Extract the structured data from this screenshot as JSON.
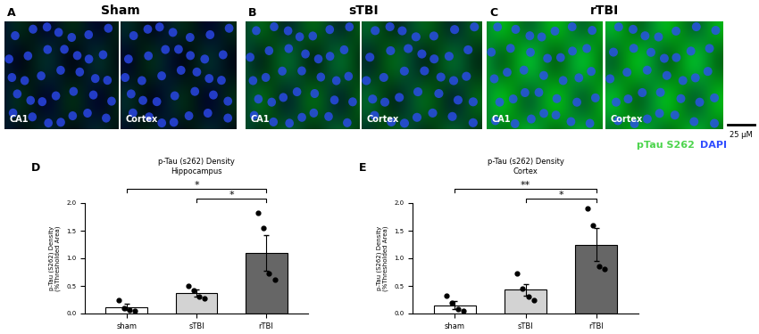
{
  "image_panels": [
    {
      "letter": "A",
      "title": "Sham",
      "images": [
        "CA1",
        "Cortex"
      ]
    },
    {
      "letter": "B",
      "title": "sTBI",
      "images": [
        "CA1",
        "Cortex"
      ]
    },
    {
      "letter": "C",
      "title": "rTBI",
      "images": [
        "CA1",
        "Cortex"
      ]
    }
  ],
  "scale_bar": "25 μM",
  "channels": [
    {
      "name": "pTau S262",
      "color": "#4cd44c"
    },
    {
      "name": "DAPI",
      "color": "#2f4cff"
    }
  ],
  "chart_data": [
    {
      "type": "bar",
      "letter": "D",
      "title": "p-Tau (s262) Density\nHippocampus",
      "y_label": "p-Tau (S262) Density\n(%Thresholded Area)",
      "categories": [
        "sham",
        "sTBI",
        "rTBI"
      ],
      "values": [
        0.12,
        0.37,
        1.1
      ],
      "errors": [
        0.06,
        0.07,
        0.32
      ],
      "points": [
        [
          0.25,
          0.1,
          0.07,
          0.05
        ],
        [
          0.5,
          0.42,
          0.3,
          0.28
        ],
        [
          1.82,
          1.55,
          0.72,
          0.62
        ]
      ],
      "colors": [
        "#ffffff",
        "#d3d3d3",
        "#666666"
      ],
      "significance": [
        {
          "from": "sham",
          "to": "rTBI",
          "label": "*"
        },
        {
          "from": "sTBI",
          "to": "rTBI",
          "label": "*"
        }
      ],
      "ylim": [
        0,
        2.0
      ],
      "yticks": [
        {
          "value": 0,
          "label": "0.0"
        },
        {
          "value": 0.5,
          "label": "0.5"
        },
        {
          "value": 1.0,
          "label": "1.0"
        },
        {
          "value": 1.5,
          "label": "1.5"
        },
        {
          "value": 2.0,
          "label": "2.0"
        }
      ]
    },
    {
      "type": "bar",
      "letter": "E",
      "title": "p-Tau (s262) Density\nCortex",
      "y_label": "p-Tau (S262) Density\n(%Thresholded Area)",
      "categories": [
        "sham",
        "sTBI",
        "rTBI"
      ],
      "values": [
        0.15,
        0.43,
        1.25
      ],
      "errors": [
        0.07,
        0.1,
        0.3
      ],
      "points": [
        [
          0.33,
          0.2,
          0.08,
          0.05
        ],
        [
          0.72,
          0.45,
          0.3,
          0.25
        ],
        [
          1.9,
          1.6,
          0.85,
          0.8
        ]
      ],
      "colors": [
        "#ffffff",
        "#d3d3d3",
        "#666666"
      ],
      "significance": [
        {
          "from": "sham",
          "to": "rTBI",
          "label": "**"
        },
        {
          "from": "sTBI",
          "to": "rTBI",
          "label": "*"
        }
      ],
      "ylim": [
        0,
        2.0
      ],
      "yticks": [
        {
          "value": 0,
          "label": "0.0"
        },
        {
          "value": 0.5,
          "label": "0.5"
        },
        {
          "value": 1.0,
          "label": "1.0"
        },
        {
          "value": 1.5,
          "label": "1.5"
        },
        {
          "value": 2.0,
          "label": "2.0"
        }
      ]
    }
  ]
}
